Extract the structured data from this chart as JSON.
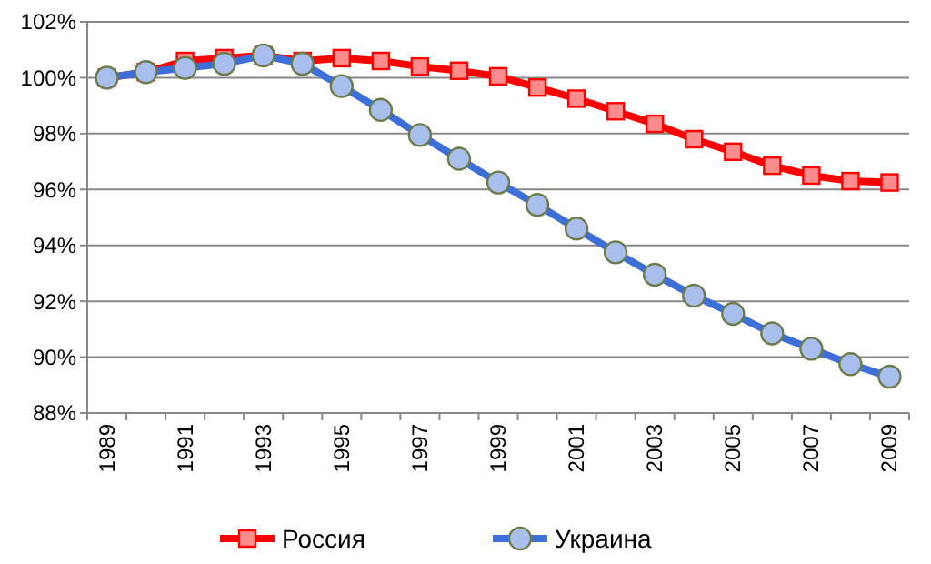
{
  "chart_data": {
    "type": "line",
    "categories": [
      "1989",
      null,
      "1991",
      null,
      "1993",
      null,
      "1995",
      null,
      "1997",
      null,
      "1999",
      null,
      "2001",
      null,
      "2003",
      null,
      "2005",
      null,
      "2007",
      null,
      "2009"
    ],
    "series": [
      {
        "name": "Россия",
        "color": "#ff0000",
        "marker": "square",
        "values": [
          100.0,
          100.2,
          100.6,
          100.7,
          100.8,
          100.6,
          100.7,
          100.6,
          100.4,
          100.25,
          100.05,
          99.65,
          99.25,
          98.8,
          98.35,
          97.8,
          97.35,
          96.85,
          96.5,
          96.3,
          96.25
        ]
      },
      {
        "name": "Украина",
        "color": "#3d6fd8",
        "marker": "circle",
        "values": [
          100.0,
          100.2,
          100.35,
          100.5,
          100.8,
          100.5,
          99.7,
          98.85,
          97.95,
          97.1,
          96.25,
          95.45,
          94.6,
          93.75,
          92.95,
          92.2,
          91.55,
          90.85,
          90.3,
          89.75,
          89.3
        ]
      }
    ],
    "ylim": [
      88,
      102
    ],
    "yticks": [
      {
        "value": 88,
        "label": "88%"
      },
      {
        "value": 90,
        "label": "90%"
      },
      {
        "value": 92,
        "label": "92%"
      },
      {
        "value": 94,
        "label": "94%"
      },
      {
        "value": 96,
        "label": "96%"
      },
      {
        "value": 98,
        "label": "98%"
      },
      {
        "value": 100,
        "label": "100%"
      },
      {
        "value": 102,
        "label": "102%"
      }
    ],
    "grid": "y",
    "legend": "bottom",
    "line_style": "solid"
  }
}
